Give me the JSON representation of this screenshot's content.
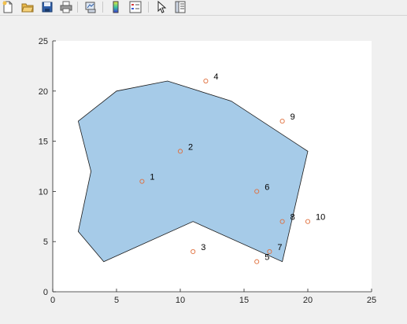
{
  "toolbar": {
    "items": [
      {
        "name": "new-figure-icon"
      },
      {
        "name": "open-file-icon"
      },
      {
        "name": "save-icon"
      },
      {
        "name": "print-icon"
      },
      {
        "name": "link-plot-icon"
      },
      {
        "name": "colorbar-icon"
      },
      {
        "name": "legend-icon"
      },
      {
        "name": "pointer-icon"
      },
      {
        "name": "property-inspector-icon"
      }
    ]
  },
  "colors": {
    "polygon_fill": "#a6cbe8",
    "polygon_edge": "#1a1a1a",
    "marker": "#e06f3c"
  },
  "chart_data": {
    "type": "scatter",
    "title": "",
    "xlabel": "",
    "ylabel": "",
    "xlim": [
      0,
      25
    ],
    "ylim": [
      0,
      25
    ],
    "xticks": [
      "0",
      "5",
      "10",
      "15",
      "20",
      "25"
    ],
    "yticks": [
      "0",
      "5",
      "10",
      "15",
      "20",
      "25"
    ],
    "grid": false,
    "polygon": {
      "x": [
        2,
        5,
        9,
        14,
        20,
        18,
        11,
        4,
        2,
        3
      ],
      "y": [
        17,
        20,
        21,
        19,
        14,
        3,
        7,
        3,
        6,
        12
      ]
    },
    "points": [
      {
        "label": "1",
        "x": 7,
        "y": 11
      },
      {
        "label": "2",
        "x": 10,
        "y": 14
      },
      {
        "label": "3",
        "x": 11,
        "y": 4
      },
      {
        "label": "4",
        "x": 12,
        "y": 21
      },
      {
        "label": "5",
        "x": 16,
        "y": 3
      },
      {
        "label": "6",
        "x": 16,
        "y": 10
      },
      {
        "label": "7",
        "x": 17,
        "y": 4
      },
      {
        "label": "8",
        "x": 18,
        "y": 7
      },
      {
        "label": "9",
        "x": 18,
        "y": 17
      },
      {
        "label": "10",
        "x": 20,
        "y": 7
      }
    ]
  }
}
